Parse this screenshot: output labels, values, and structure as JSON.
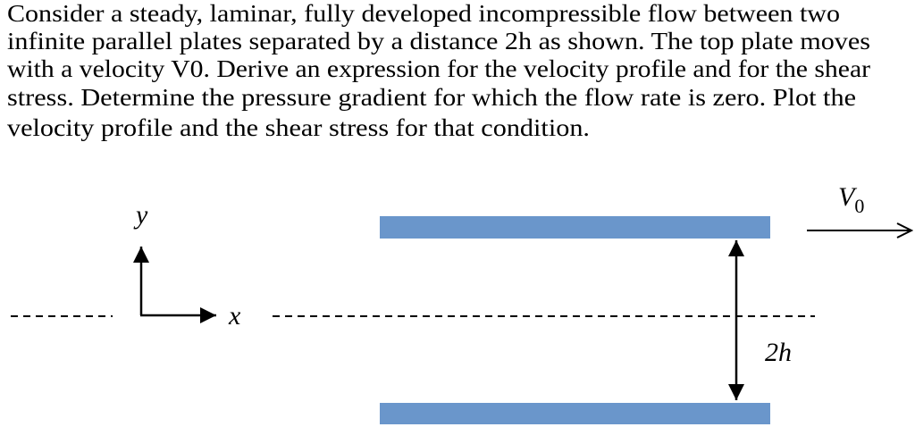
{
  "problem": {
    "lines": [
      "Consider a steady, laminar, fully developed incompressible flow between two",
      "infinite parallel plates separated by a distance 2h as shown. The top plate moves",
      "with a velocity V0. Derive an expression for the velocity profile and for the shear",
      "stress. Determine the pressure gradient for which the flow rate is zero. Plot the",
      "velocity profile and the shear stress for that condition."
    ]
  },
  "diagram": {
    "y_axis_label": "y",
    "x_axis_label": "x",
    "velocity_label": {
      "base": "V",
      "subscript": "0"
    },
    "gap_label": "2h"
  }
}
